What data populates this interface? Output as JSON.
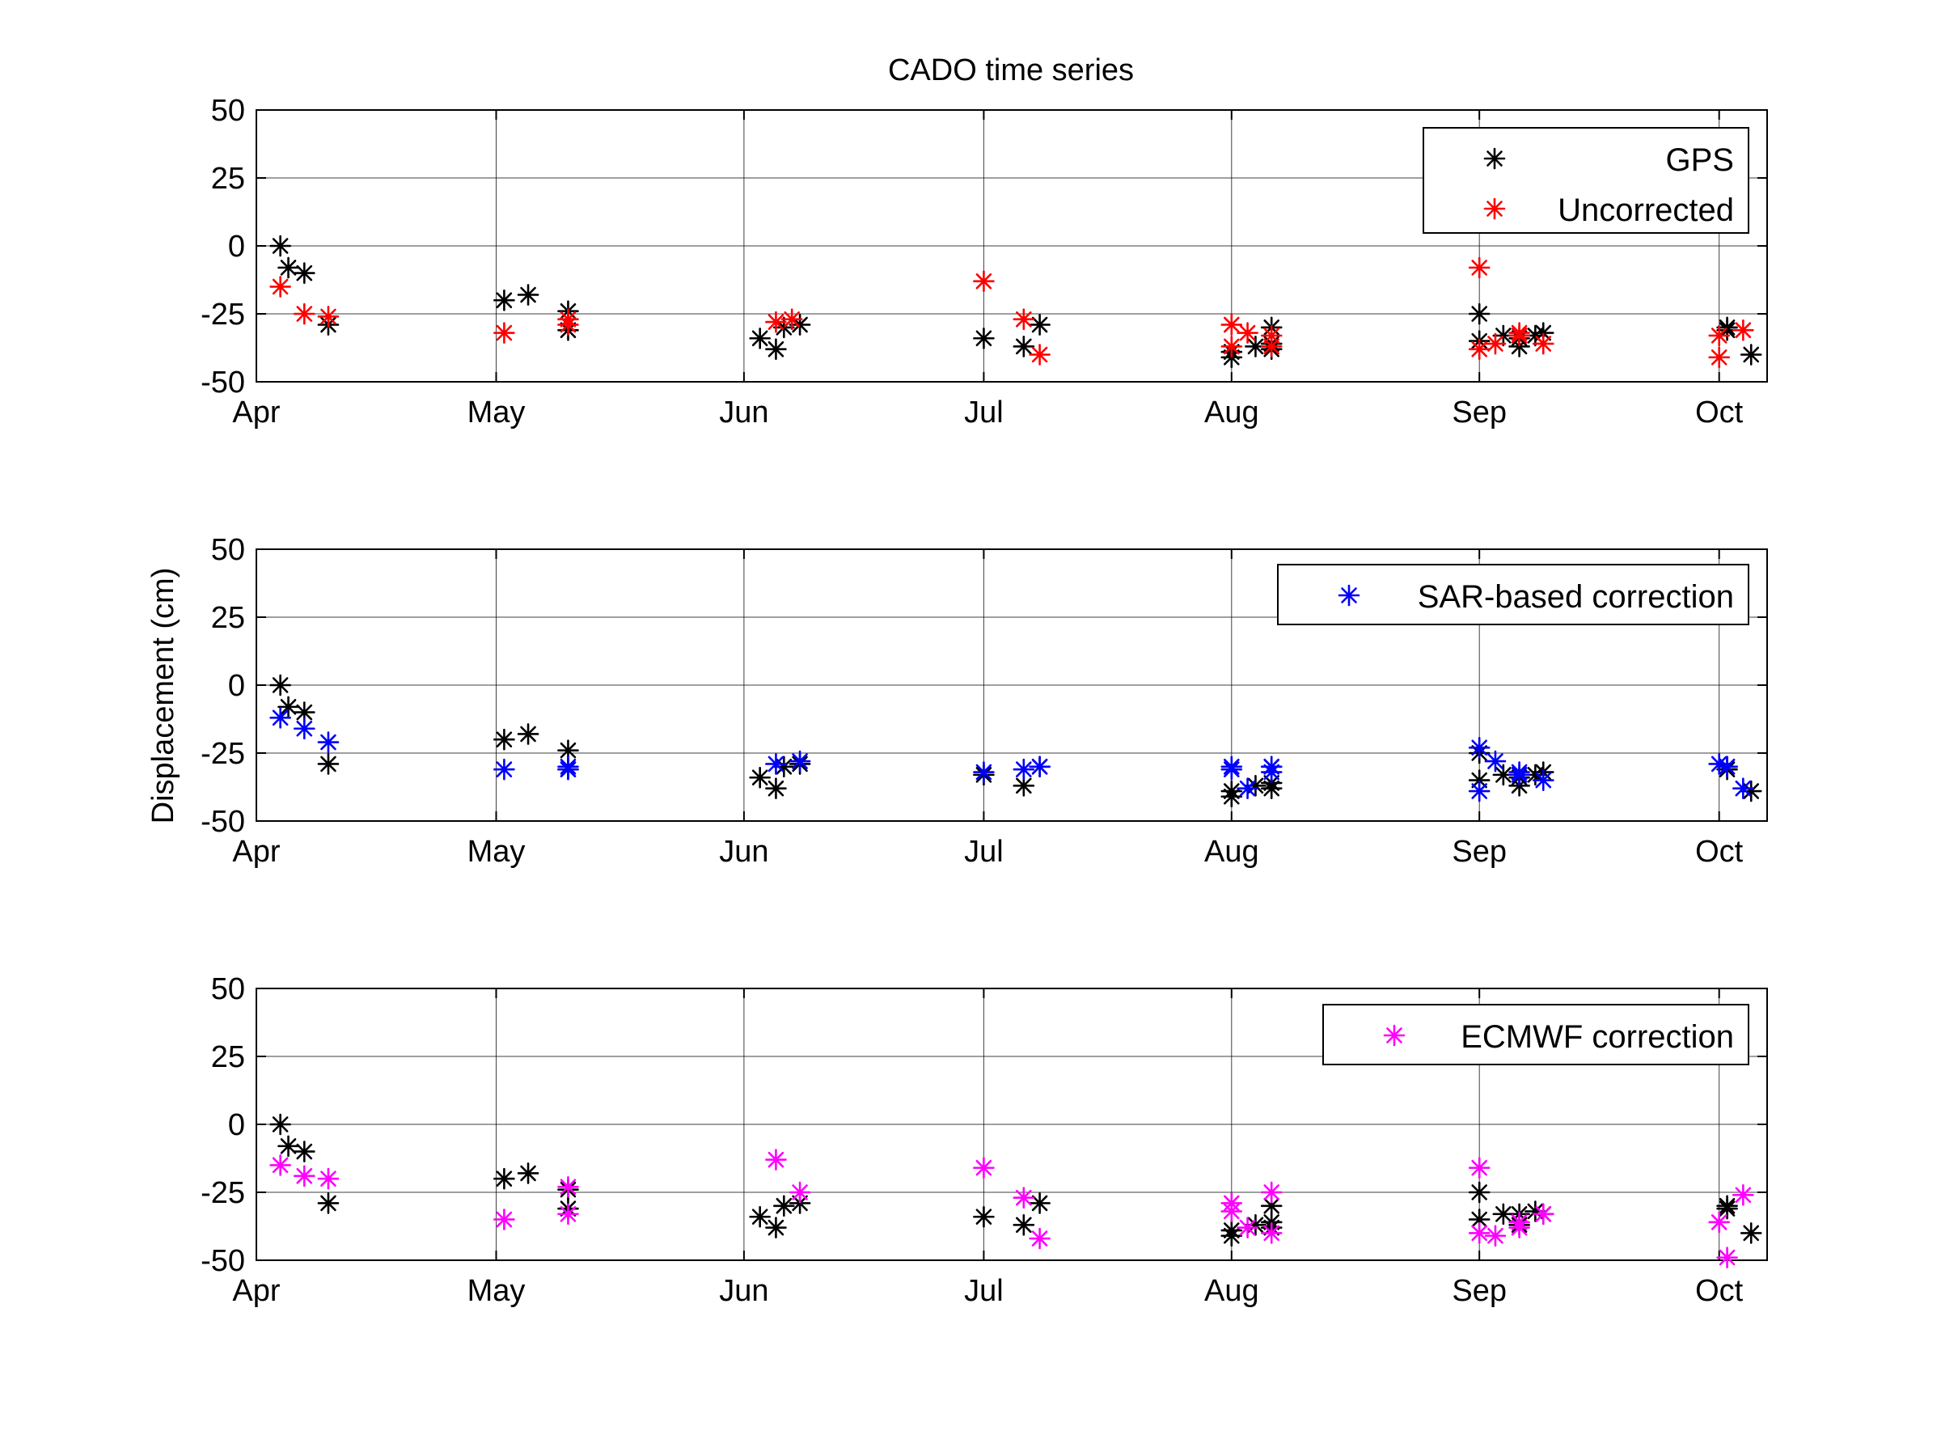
{
  "figure": {
    "title": "CADO time series",
    "ylabel": "Displacement (cm)"
  },
  "chart_data": [
    {
      "type": "scatter",
      "title": "CADO time series",
      "xlabel": "",
      "ylabel": "",
      "xlim": [
        "2011-04-01",
        "2011-10-07"
      ],
      "ylim": [
        -50,
        50
      ],
      "x_tick_labels": [
        "Apr",
        "May",
        "Jun",
        "Jul",
        "Aug",
        "Sep",
        "Oct"
      ],
      "x_tick_dates": [
        "2011-04-01",
        "2011-05-01",
        "2011-06-01",
        "2011-07-01",
        "2011-08-01",
        "2011-09-01",
        "2011-10-01"
      ],
      "y_ticks": [
        -50,
        -25,
        0,
        25,
        50
      ],
      "grid": true,
      "legend_position": "top-right",
      "series": [
        {
          "name": "GPS",
          "color": "#000000",
          "points": [
            [
              "2011-04-04",
              0
            ],
            [
              "2011-04-05",
              -8
            ],
            [
              "2011-04-07",
              -10
            ],
            [
              "2011-04-10",
              -29
            ],
            [
              "2011-05-02",
              -20
            ],
            [
              "2011-05-05",
              -18
            ],
            [
              "2011-05-10",
              -31
            ],
            [
              "2011-05-10",
              -24
            ],
            [
              "2011-06-03",
              -34
            ],
            [
              "2011-06-05",
              -38
            ],
            [
              "2011-06-06",
              -30
            ],
            [
              "2011-06-08",
              -29
            ],
            [
              "2011-07-01",
              -34
            ],
            [
              "2011-07-06",
              -37
            ],
            [
              "2011-07-08",
              -29
            ],
            [
              "2011-08-01",
              -41
            ],
            [
              "2011-08-01",
              -39
            ],
            [
              "2011-08-04",
              -37
            ],
            [
              "2011-08-06",
              -38
            ],
            [
              "2011-08-06",
              -36
            ],
            [
              "2011-08-06",
              -30
            ],
            [
              "2011-09-01",
              -25
            ],
            [
              "2011-09-01",
              -35
            ],
            [
              "2011-09-04",
              -33
            ],
            [
              "2011-09-06",
              -37
            ],
            [
              "2011-09-06",
              -34
            ],
            [
              "2011-09-08",
              -33
            ],
            [
              "2011-09-09",
              -32
            ],
            [
              "2011-10-02",
              -31
            ],
            [
              "2011-10-02",
              -30
            ],
            [
              "2011-10-05",
              -40
            ]
          ]
        },
        {
          "name": "Uncorrected",
          "color": "#ff0000",
          "points": [
            [
              "2011-04-04",
              -15
            ],
            [
              "2011-04-07",
              -25
            ],
            [
              "2011-04-10",
              -26
            ],
            [
              "2011-05-02",
              -32
            ],
            [
              "2011-05-10",
              -29
            ],
            [
              "2011-05-10",
              -27
            ],
            [
              "2011-06-05",
              -28
            ],
            [
              "2011-06-07",
              -27
            ],
            [
              "2011-07-01",
              -13
            ],
            [
              "2011-07-06",
              -27
            ],
            [
              "2011-07-08",
              -40
            ],
            [
              "2011-08-01",
              -29
            ],
            [
              "2011-08-01",
              -37
            ],
            [
              "2011-08-03",
              -32
            ],
            [
              "2011-08-06",
              -37
            ],
            [
              "2011-08-06",
              -33
            ],
            [
              "2011-09-01",
              -8
            ],
            [
              "2011-09-01",
              -38
            ],
            [
              "2011-09-03",
              -36
            ],
            [
              "2011-09-06",
              -33
            ],
            [
              "2011-09-06",
              -32
            ],
            [
              "2011-09-09",
              -36
            ],
            [
              "2011-10-01",
              -33
            ],
            [
              "2011-10-01",
              -41
            ],
            [
              "2011-10-04",
              -31
            ]
          ]
        }
      ]
    },
    {
      "type": "scatter",
      "title": "",
      "xlabel": "",
      "ylabel": "Displacement (cm)",
      "xlim": [
        "2011-04-01",
        "2011-10-07"
      ],
      "ylim": [
        -50,
        50
      ],
      "x_tick_labels": [
        "Apr",
        "May",
        "Jun",
        "Jul",
        "Aug",
        "Sep",
        "Oct"
      ],
      "x_tick_dates": [
        "2011-04-01",
        "2011-05-01",
        "2011-06-01",
        "2011-07-01",
        "2011-08-01",
        "2011-09-01",
        "2011-10-01"
      ],
      "y_ticks": [
        -50,
        -25,
        0,
        25,
        50
      ],
      "grid": true,
      "legend_position": "top-right",
      "series": [
        {
          "name": "",
          "color": "#000000",
          "points": [
            [
              "2011-04-04",
              0
            ],
            [
              "2011-04-05",
              -8
            ],
            [
              "2011-04-07",
              -10
            ],
            [
              "2011-04-10",
              -29
            ],
            [
              "2011-05-02",
              -20
            ],
            [
              "2011-05-05",
              -18
            ],
            [
              "2011-05-10",
              -31
            ],
            [
              "2011-05-10",
              -24
            ],
            [
              "2011-06-03",
              -34
            ],
            [
              "2011-06-05",
              -38
            ],
            [
              "2011-06-06",
              -30
            ],
            [
              "2011-06-08",
              -29
            ],
            [
              "2011-07-01",
              -33
            ],
            [
              "2011-07-06",
              -37
            ],
            [
              "2011-07-08",
              -30
            ],
            [
              "2011-08-01",
              -41
            ],
            [
              "2011-08-01",
              -39
            ],
            [
              "2011-08-04",
              -37
            ],
            [
              "2011-08-06",
              -38
            ],
            [
              "2011-08-06",
              -36
            ],
            [
              "2011-08-06",
              -30
            ],
            [
              "2011-09-01",
              -25
            ],
            [
              "2011-09-01",
              -35
            ],
            [
              "2011-09-04",
              -33
            ],
            [
              "2011-09-06",
              -37
            ],
            [
              "2011-09-06",
              -34
            ],
            [
              "2011-09-08",
              -33
            ],
            [
              "2011-09-09",
              -32
            ],
            [
              "2011-10-02",
              -31
            ],
            [
              "2011-10-02",
              -30
            ],
            [
              "2011-10-05",
              -39
            ]
          ]
        },
        {
          "name": "SAR-based correction",
          "color": "#0000ff",
          "points": [
            [
              "2011-04-04",
              -12
            ],
            [
              "2011-04-07",
              -16
            ],
            [
              "2011-04-10",
              -21
            ],
            [
              "2011-05-02",
              -31
            ],
            [
              "2011-05-10",
              -31
            ],
            [
              "2011-05-10",
              -30
            ],
            [
              "2011-06-05",
              -29
            ],
            [
              "2011-06-08",
              -28
            ],
            [
              "2011-07-01",
              -32
            ],
            [
              "2011-07-06",
              -31
            ],
            [
              "2011-07-08",
              -30
            ],
            [
              "2011-08-01",
              -31
            ],
            [
              "2011-08-01",
              -30
            ],
            [
              "2011-08-03",
              -38
            ],
            [
              "2011-08-06",
              -32
            ],
            [
              "2011-08-06",
              -30
            ],
            [
              "2011-09-01",
              -23
            ],
            [
              "2011-09-01",
              -39
            ],
            [
              "2011-09-03",
              -28
            ],
            [
              "2011-09-06",
              -33
            ],
            [
              "2011-09-06",
              -32
            ],
            [
              "2011-09-09",
              -35
            ],
            [
              "2011-10-01",
              -29
            ],
            [
              "2011-10-02",
              -30
            ],
            [
              "2011-10-04",
              -38
            ]
          ]
        }
      ]
    },
    {
      "type": "scatter",
      "title": "",
      "xlabel": "",
      "ylabel": "",
      "xlim": [
        "2011-04-01",
        "2011-10-07"
      ],
      "ylim": [
        -50,
        50
      ],
      "x_tick_labels": [
        "Apr",
        "May",
        "Jun",
        "Jul",
        "Aug",
        "Sep",
        "Oct"
      ],
      "x_tick_dates": [
        "2011-04-01",
        "2011-05-01",
        "2011-06-01",
        "2011-07-01",
        "2011-08-01",
        "2011-09-01",
        "2011-10-01"
      ],
      "y_ticks": [
        -50,
        -25,
        0,
        25,
        50
      ],
      "grid": true,
      "legend_position": "top-right",
      "series": [
        {
          "name": "",
          "color": "#000000",
          "points": [
            [
              "2011-04-04",
              0
            ],
            [
              "2011-04-05",
              -8
            ],
            [
              "2011-04-07",
              -10
            ],
            [
              "2011-04-10",
              -29
            ],
            [
              "2011-05-02",
              -20
            ],
            [
              "2011-05-05",
              -18
            ],
            [
              "2011-05-10",
              -31
            ],
            [
              "2011-05-10",
              -24
            ],
            [
              "2011-06-03",
              -34
            ],
            [
              "2011-06-05",
              -38
            ],
            [
              "2011-06-06",
              -30
            ],
            [
              "2011-06-08",
              -29
            ],
            [
              "2011-07-01",
              -34
            ],
            [
              "2011-07-06",
              -37
            ],
            [
              "2011-07-08",
              -29
            ],
            [
              "2011-08-01",
              -41
            ],
            [
              "2011-08-01",
              -39
            ],
            [
              "2011-08-04",
              -37
            ],
            [
              "2011-08-06",
              -38
            ],
            [
              "2011-08-06",
              -36
            ],
            [
              "2011-08-06",
              -30
            ],
            [
              "2011-09-01",
              -25
            ],
            [
              "2011-09-01",
              -35
            ],
            [
              "2011-09-04",
              -33
            ],
            [
              "2011-09-06",
              -37
            ],
            [
              "2011-09-06",
              -33
            ],
            [
              "2011-09-08",
              -32
            ],
            [
              "2011-09-09",
              -33
            ],
            [
              "2011-10-02",
              -31
            ],
            [
              "2011-10-02",
              -30
            ],
            [
              "2011-10-05",
              -40
            ]
          ]
        },
        {
          "name": "ECMWF correction",
          "color": "#ff00ff",
          "points": [
            [
              "2011-04-04",
              -15
            ],
            [
              "2011-04-07",
              -19
            ],
            [
              "2011-04-10",
              -20
            ],
            [
              "2011-05-02",
              -35
            ],
            [
              "2011-05-10",
              -23
            ],
            [
              "2011-05-10",
              -33
            ],
            [
              "2011-06-05",
              -13
            ],
            [
              "2011-06-08",
              -25
            ],
            [
              "2011-07-01",
              -16
            ],
            [
              "2011-07-06",
              -27
            ],
            [
              "2011-07-08",
              -42
            ],
            [
              "2011-08-01",
              -29
            ],
            [
              "2011-08-01",
              -32
            ],
            [
              "2011-08-03",
              -38
            ],
            [
              "2011-08-06",
              -40
            ],
            [
              "2011-08-06",
              -25
            ],
            [
              "2011-09-01",
              -16
            ],
            [
              "2011-09-01",
              -40
            ],
            [
              "2011-09-03",
              -41
            ],
            [
              "2011-09-06",
              -38
            ],
            [
              "2011-09-06",
              -36
            ],
            [
              "2011-09-09",
              -33
            ],
            [
              "2011-10-01",
              -36
            ],
            [
              "2011-10-02",
              -49
            ],
            [
              "2011-10-04",
              -26
            ]
          ]
        }
      ]
    }
  ]
}
